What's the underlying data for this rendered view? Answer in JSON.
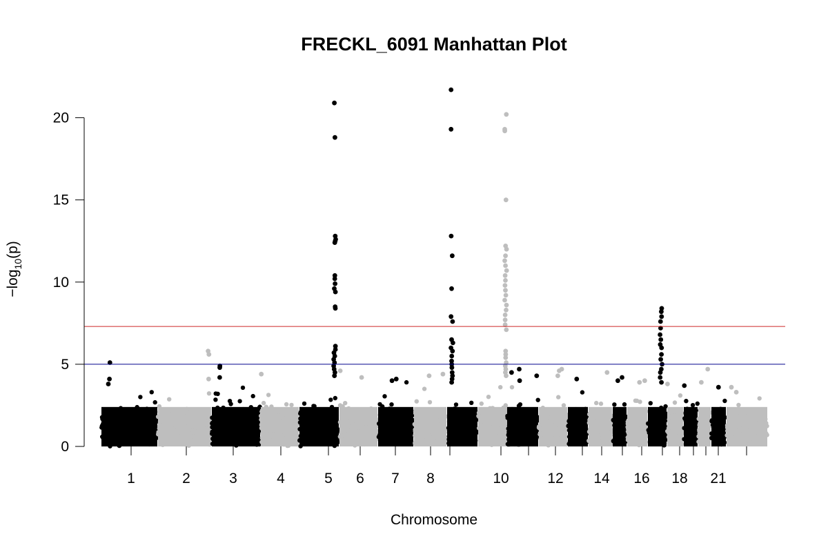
{
  "chart_data": {
    "type": "scatter",
    "subtype": "manhattan",
    "title": "FRECKL_6091 Manhattan Plot",
    "xlabel": "Chromosome",
    "ylabel": {
      "prefix": "−log",
      "subscript": "10",
      "suffix": "(p)"
    },
    "ylim": [
      0,
      21.7
    ],
    "yticks": [
      0,
      5,
      10,
      15,
      20
    ],
    "x_tick_labels": [
      "1",
      "2",
      "3",
      "4",
      "5",
      "6",
      "7",
      "8",
      "10",
      "12",
      "14",
      "16",
      "18",
      "21"
    ],
    "colors": {
      "odd": "#000000",
      "even": "#bebebe",
      "genomewide_line": "#cd2626",
      "suggestive_line": "#00008b"
    },
    "thresholds": {
      "genomewide": 7.3,
      "suggestive": 5.0
    },
    "chromosomes": [
      {
        "chr": 1,
        "baseline_max": 3.9,
        "peaks": [
          5.1,
          4.1,
          3.8
        ]
      },
      {
        "chr": 2,
        "baseline_max": 4.0,
        "peaks": [
          5.8,
          5.6,
          4.1
        ]
      },
      {
        "chr": 3,
        "baseline_max": 3.8,
        "peaks": [
          4.9,
          4.8,
          4.2
        ]
      },
      {
        "chr": 4,
        "baseline_max": 3.6,
        "peaks": [
          4.4
        ]
      },
      {
        "chr": 5,
        "baseline_max": 3.7,
        "peaks": [
          20.9,
          18.8,
          12.8,
          12.6,
          12.5,
          12.4,
          10.4,
          10.2,
          9.9,
          9.6,
          9.4,
          8.5,
          8.4,
          6.1,
          5.9,
          5.7,
          5.5,
          5.3,
          5.1,
          4.9,
          4.7,
          4.5,
          4.3
        ]
      },
      {
        "chr": 6,
        "baseline_max": 3.8,
        "peaks": [
          4.6,
          4.2
        ]
      },
      {
        "chr": 7,
        "baseline_max": 3.9,
        "peaks": [
          4.1,
          4.0
        ]
      },
      {
        "chr": 8,
        "baseline_max": 3.5,
        "peaks": [
          4.4,
          4.3
        ]
      },
      {
        "chr": 9,
        "baseline_max": 3.4,
        "peaks": [
          21.7,
          19.3,
          12.8,
          11.6,
          9.6,
          7.9,
          7.6,
          6.5,
          6.3,
          6.0,
          5.8,
          5.5,
          5.2,
          5.0,
          4.8,
          4.5,
          4.3,
          4.1,
          3.9
        ]
      },
      {
        "chr": 10,
        "baseline_max": 3.6,
        "peaks": [
          20.2,
          19.3,
          19.2,
          15.0,
          12.2,
          12.0,
          11.6,
          11.3,
          11.0,
          10.7,
          10.4,
          10.1,
          9.8,
          9.5,
          9.2,
          8.9,
          8.6,
          8.3,
          8.0,
          7.7,
          7.4,
          7.1,
          5.8,
          5.6,
          5.4,
          5.1,
          4.9,
          4.7,
          4.5,
          4.3
        ]
      },
      {
        "chr": 11,
        "baseline_max": 3.7,
        "peaks": [
          4.7,
          4.5,
          4.3,
          4.0
        ]
      },
      {
        "chr": 12,
        "baseline_max": 3.6,
        "peaks": [
          4.7,
          4.6,
          4.3
        ]
      },
      {
        "chr": 13,
        "baseline_max": 3.4,
        "peaks": [
          4.1
        ]
      },
      {
        "chr": 14,
        "baseline_max": 3.4,
        "peaks": [
          4.5
        ]
      },
      {
        "chr": 15,
        "baseline_max": 3.3,
        "peaks": [
          4.2,
          4.0
        ]
      },
      {
        "chr": 16,
        "baseline_max": 3.3,
        "peaks": [
          4.0,
          3.9
        ]
      },
      {
        "chr": 17,
        "baseline_max": 3.5,
        "peaks": [
          8.4,
          8.2,
          7.9,
          7.6,
          7.2,
          6.8,
          6.5,
          6.2,
          6.0,
          5.6,
          5.3,
          5.0,
          4.7,
          4.5,
          4.2,
          3.9
        ]
      },
      {
        "chr": 18,
        "baseline_max": 3.3,
        "peaks": [
          3.8
        ]
      },
      {
        "chr": 19,
        "baseline_max": 3.2,
        "peaks": [
          3.7
        ]
      },
      {
        "chr": 20,
        "baseline_max": 3.3,
        "peaks": [
          4.7,
          3.9
        ]
      },
      {
        "chr": 21,
        "baseline_max": 3.1,
        "peaks": [
          3.6
        ]
      },
      {
        "chr": 22,
        "baseline_max": 3.0,
        "peaks": [
          3.6,
          3.3
        ]
      }
    ]
  }
}
